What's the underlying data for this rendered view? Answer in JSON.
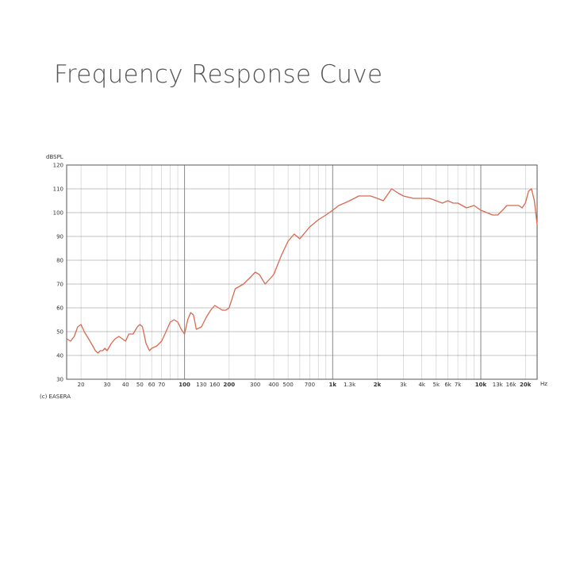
{
  "page": {
    "title": "Frequency Response Cuve"
  },
  "chart_data": {
    "type": "line",
    "title": "",
    "ylabel": "dBSPL",
    "xunit": "Hz",
    "credit": "(c) EASERA",
    "xscale": "log",
    "xlim": [
      16,
      24000
    ],
    "ylim": [
      30,
      120
    ],
    "grid": true,
    "yticks": [
      {
        "value": 120,
        "label": "120"
      },
      {
        "value": 110,
        "label": "110"
      },
      {
        "value": 100,
        "label": "100"
      },
      {
        "value": 90,
        "label": "90"
      },
      {
        "value": 80,
        "label": "80"
      },
      {
        "value": 70,
        "label": "70"
      },
      {
        "value": 60,
        "label": "60"
      },
      {
        "value": 50,
        "label": "50"
      },
      {
        "value": 40,
        "label": "40"
      },
      {
        "value": 30,
        "label": "30"
      }
    ],
    "xticks": [
      {
        "value": 20,
        "label": "20"
      },
      {
        "value": 30,
        "label": "30"
      },
      {
        "value": 40,
        "label": "40"
      },
      {
        "value": 50,
        "label": "50"
      },
      {
        "value": 60,
        "label": "60"
      },
      {
        "value": 70,
        "label": "70"
      },
      {
        "value": 100,
        "label": "100",
        "bold": true
      },
      {
        "value": 130,
        "label": "130"
      },
      {
        "value": 160,
        "label": "160"
      },
      {
        "value": 200,
        "label": "200",
        "bold": true
      },
      {
        "value": 300,
        "label": "300"
      },
      {
        "value": 400,
        "label": "400"
      },
      {
        "value": 500,
        "label": "500"
      },
      {
        "value": 700,
        "label": "700"
      },
      {
        "value": 1000,
        "label": "1k",
        "bold": true
      },
      {
        "value": 1300,
        "label": "1.3k"
      },
      {
        "value": 2000,
        "label": "2k",
        "bold": true
      },
      {
        "value": 3000,
        "label": "3k"
      },
      {
        "value": 4000,
        "label": "4k"
      },
      {
        "value": 5000,
        "label": "5k"
      },
      {
        "value": 6000,
        "label": "6k"
      },
      {
        "value": 7000,
        "label": "7k"
      },
      {
        "value": 10000,
        "label": "10k",
        "bold": true
      },
      {
        "value": 13000,
        "label": "13k"
      },
      {
        "value": 16000,
        "label": "16k"
      },
      {
        "value": 20000,
        "label": "20k",
        "bold": true
      }
    ],
    "colors": {
      "line": "#d9694f",
      "grid": "#c8c8c8",
      "grid_major": "#888888",
      "axis": "#555555"
    },
    "series": [
      {
        "x": [
          16,
          17,
          18,
          19,
          20,
          21,
          22,
          23,
          24,
          25,
          26,
          27,
          28,
          29,
          30,
          32,
          34,
          36,
          38,
          40,
          42,
          45,
          48,
          50,
          52,
          55,
          58,
          60,
          65,
          70,
          75,
          80,
          85,
          90,
          95,
          100,
          105,
          110,
          115,
          120,
          130,
          140,
          150,
          160,
          170,
          180,
          190,
          200,
          220,
          250,
          280,
          300,
          320,
          350,
          400,
          450,
          500,
          550,
          600,
          700,
          800,
          900,
          1000,
          1100,
          1200,
          1300,
          1400,
          1500,
          1600,
          1800,
          2000,
          2200,
          2500,
          2800,
          3000,
          3500,
          4000,
          4500,
          5000,
          5500,
          6000,
          6500,
          7000,
          8000,
          9000,
          10000,
          11000,
          12000,
          13000,
          14000,
          15000,
          16000,
          17000,
          18000,
          19000,
          20000,
          21000,
          22000,
          23000,
          24000
        ],
        "y": [
          47,
          46,
          48,
          52,
          53,
          50,
          48,
          46,
          44,
          42,
          41,
          42,
          42,
          43,
          42,
          45,
          47,
          48,
          47,
          46,
          49,
          49,
          52,
          53,
          52,
          45,
          42,
          43,
          44,
          46,
          50,
          54,
          55,
          54,
          51,
          49,
          55,
          58,
          57,
          51,
          52,
          56,
          59,
          61,
          60,
          59,
          59,
          60,
          68,
          70,
          73,
          75,
          74,
          70,
          74,
          82,
          88,
          91,
          89,
          94,
          97,
          99,
          101,
          103,
          104,
          105,
          106,
          107,
          107,
          107,
          106,
          105,
          110,
          108,
          107,
          106,
          106,
          106,
          105,
          104,
          105,
          104,
          104,
          102,
          103,
          101,
          100,
          99,
          99,
          101,
          103,
          103,
          103,
          103,
          102,
          104,
          109,
          110,
          105,
          95
        ]
      }
    ]
  }
}
